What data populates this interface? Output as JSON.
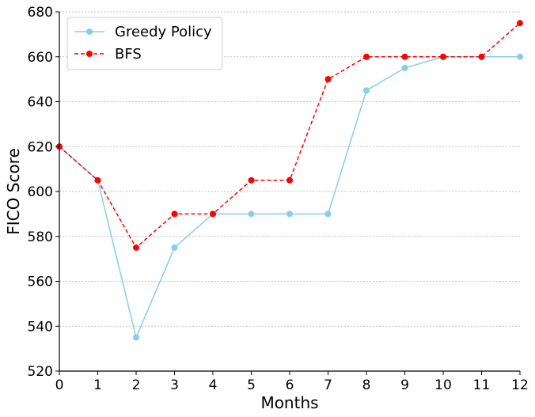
{
  "chart_data": {
    "type": "line",
    "xlabel": "Months",
    "ylabel": "FICO Score",
    "x": [
      0,
      1,
      2,
      3,
      4,
      5,
      6,
      7,
      8,
      9,
      10,
      11,
      12
    ],
    "xlim": [
      0,
      12
    ],
    "ylim": [
      520,
      680
    ],
    "xticks": [
      "0",
      "1",
      "2",
      "3",
      "4",
      "5",
      "6",
      "7",
      "8",
      "9",
      "10",
      "11",
      "12"
    ],
    "yticks": [
      "520",
      "540",
      "560",
      "580",
      "600",
      "620",
      "640",
      "660",
      "680"
    ],
    "grid": "horizontal dotted",
    "legend_position": "top-left",
    "series": [
      {
        "name": "Greedy Policy",
        "color": "#87ceeb",
        "line_style": "solid",
        "marker": "circle",
        "values": [
          620,
          605,
          535,
          575,
          590,
          590,
          590,
          590,
          645,
          655,
          660,
          660,
          660
        ]
      },
      {
        "name": "BFS",
        "color": "#ff0000",
        "line_style": "dashed",
        "marker": "circle",
        "values": [
          620,
          605,
          575,
          590,
          590,
          605,
          605,
          650,
          660,
          660,
          660,
          660,
          675
        ]
      }
    ]
  }
}
